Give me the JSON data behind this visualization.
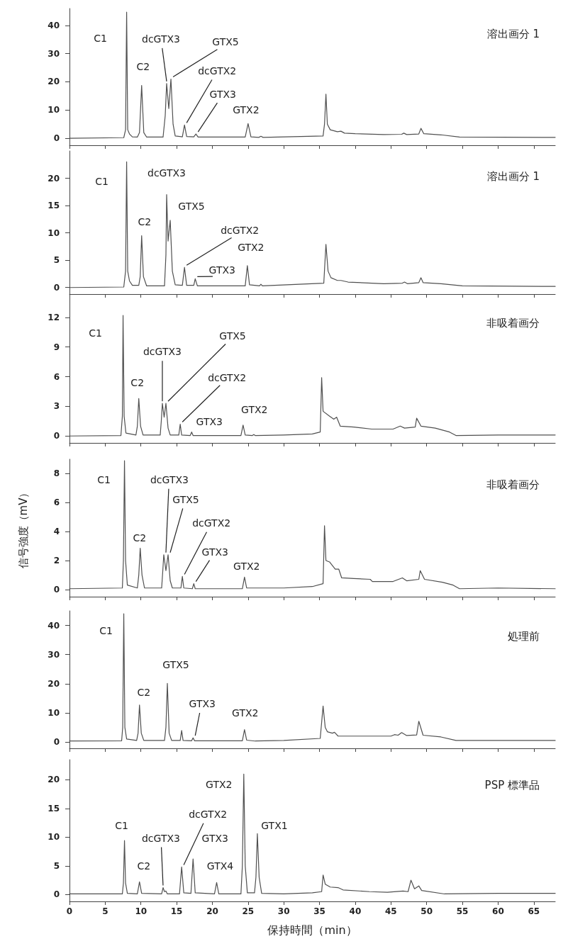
{
  "chart_data": [
    {
      "type": "line",
      "xlim": [
        0,
        68
      ],
      "xticks": [
        0,
        5,
        10,
        15,
        20,
        25,
        30,
        35,
        40,
        45,
        50,
        55,
        60,
        65
      ],
      "ylim": [
        -2.5,
        46
      ],
      "yticks": [
        0,
        10,
        20,
        30,
        40
      ],
      "tick_labels": "y",
      "series": [
        {
          "color": "#505050",
          "x": [
            0,
            7.6,
            7.85,
            8.0,
            8.15,
            8.4,
            8.8,
            9.5,
            9.8,
            10.1,
            10.4,
            10.8,
            13.1,
            13.4,
            13.6,
            13.9,
            14.2,
            14.5,
            14.8,
            15.8,
            16.1,
            16.4,
            17.4,
            17.7,
            18,
            24.6,
            25,
            25.4,
            26.5,
            26.8,
            27.1,
            35.5,
            35.7,
            35.9,
            36.1,
            36.5,
            37.5,
            38,
            38.5,
            40,
            44,
            46.5,
            46.8,
            47.2,
            48.9,
            49.2,
            49.6,
            52,
            54.6,
            68
          ],
          "values": [
            0,
            0.2,
            3,
            44.7,
            3,
            1.5,
            0.5,
            0.4,
            2,
            18.7,
            2,
            0.4,
            0.4,
            8,
            19.4,
            10.5,
            21,
            5,
            0.8,
            0.5,
            4.7,
            0.6,
            0.5,
            1.5,
            0.4,
            0.4,
            5.2,
            0.5,
            0.3,
            0.7,
            0.3,
            0.8,
            5,
            15.6,
            5,
            3,
            2.3,
            2.5,
            1.8,
            1.6,
            1.3,
            1.4,
            1.8,
            1.3,
            1.5,
            3.5,
            1.6,
            1.2,
            0.4,
            0.3
          ]
        }
      ],
      "annotations": [
        {
          "text": "C1",
          "x": 8.0,
          "y": 44.7
        },
        {
          "text": "C2",
          "x": 10.1,
          "y": 18.7
        },
        {
          "text": "dcGTX3",
          "x": 13.6,
          "y": 19.4
        },
        {
          "text": "GTX5",
          "x": 14.2,
          "y": 21
        },
        {
          "text": "dcGTX2",
          "x": 16.1,
          "y": 4.7
        },
        {
          "text": "GTX3",
          "x": 17.7,
          "y": 1.5
        },
        {
          "text": "GTX2",
          "x": 25,
          "y": 5.2
        },
        "溶出画分 1"
      ]
    },
    {
      "type": "line",
      "xlim": [
        0,
        68
      ],
      "xticks": [
        0,
        5,
        10,
        15,
        20,
        25,
        30,
        35,
        40,
        45,
        50,
        55,
        60,
        65
      ],
      "ylim": [
        -1.2,
        25
      ],
      "yticks": [
        0,
        5,
        10,
        15,
        20
      ],
      "tick_labels": "y",
      "series": [
        {
          "color": "#505050",
          "x": [
            0,
            7.6,
            7.85,
            8.0,
            8.15,
            8.4,
            8.8,
            9.7,
            9.9,
            10.1,
            10.35,
            10.8,
            13.3,
            13.5,
            13.6,
            13.8,
            14.1,
            14.4,
            14.8,
            15.8,
            16.1,
            16.4,
            17.4,
            17.6,
            17.9,
            24.6,
            24.9,
            25.2,
            26.6,
            26.8,
            27.0,
            35.6,
            35.9,
            36.2,
            36.6,
            37.5,
            38,
            39,
            44,
            46.6,
            46.9,
            47.3,
            48.9,
            49.2,
            49.5,
            52,
            55,
            68
          ],
          "values": [
            0,
            0.1,
            3,
            23,
            3,
            1.2,
            0.4,
            0.4,
            2,
            9.5,
            2,
            0.3,
            0.3,
            6,
            17,
            8.5,
            12.3,
            3,
            0.5,
            0.4,
            3.7,
            0.4,
            0.4,
            1.6,
            0.3,
            0.3,
            4.0,
            0.5,
            0.3,
            0.6,
            0.3,
            0.8,
            7.9,
            3,
            1.8,
            1.3,
            1.3,
            1.0,
            0.7,
            0.8,
            1.0,
            0.7,
            0.9,
            1.8,
            0.9,
            0.7,
            0.3,
            0.2
          ]
        }
      ],
      "annotations": [
        {
          "text": "C1",
          "x": 8.0,
          "y": 23
        },
        {
          "text": "dcGTX3",
          "x": 13.6,
          "y": 17
        },
        {
          "text": "GTX5",
          "x": 14.1,
          "y": 12.3
        },
        {
          "text": "C2",
          "x": 10.1,
          "y": 9.5
        },
        {
          "text": "dcGTX2",
          "x": 16.1,
          "y": 3.7
        },
        {
          "text": "GTX2",
          "x": 24.9,
          "y": 4.0
        },
        {
          "text": "GTX3",
          "x": 17.6,
          "y": 1.6
        },
        "溶出画分 1"
      ]
    },
    {
      "type": "line",
      "xlim": [
        0,
        68
      ],
      "xticks": [
        0,
        5,
        10,
        15,
        20,
        25,
        30,
        35,
        40,
        45,
        50,
        55,
        60,
        65
      ],
      "ylim": [
        -0.7,
        14
      ],
      "yticks": [
        0,
        3,
        6,
        9,
        12
      ],
      "tick_labels": "y",
      "series": [
        {
          "color": "#505050",
          "x": [
            0,
            7.2,
            7.4,
            7.5,
            7.65,
            7.9,
            9.3,
            9.5,
            9.7,
            9.95,
            10.3,
            12.7,
            12.85,
            13.0,
            13.25,
            13.5,
            13.8,
            14.1,
            15.3,
            15.5,
            15.7,
            16.9,
            17.1,
            17.3,
            24.0,
            24.3,
            24.6,
            25.6,
            25.8,
            26.0,
            30,
            34,
            35.1,
            35.3,
            35.5,
            36.4,
            37.0,
            37.4,
            37.9,
            39.8,
            42.3,
            45.3,
            46.3,
            46.9,
            48.4,
            48.6,
            49.2,
            51.2,
            53.2,
            54.1,
            60,
            68
          ],
          "values": [
            0,
            0.05,
            2,
            12.2,
            2,
            0.3,
            0.1,
            1,
            3.8,
            1,
            0.1,
            0.1,
            1.5,
            3.3,
            1.9,
            3.3,
            0.8,
            0.1,
            0.1,
            1.2,
            0.1,
            0.05,
            0.4,
            0.05,
            0.05,
            1.1,
            0.1,
            0.05,
            0.15,
            0.05,
            0.1,
            0.2,
            0.4,
            5.9,
            2.5,
            2.0,
            1.7,
            1.9,
            1.0,
            0.9,
            0.7,
            0.7,
            1.0,
            0.8,
            0.9,
            1.8,
            1.0,
            0.8,
            0.4,
            0.05,
            0.1,
            0.1
          ]
        }
      ],
      "annotations": [
        {
          "text": "C1",
          "x": 7.5,
          "y": 12.2
        },
        {
          "text": "GTX5",
          "x": 13.5,
          "y": 3.3
        },
        {
          "text": "dcGTX3",
          "x": 13.0,
          "y": 3.3
        },
        {
          "text": "C2",
          "x": 9.7,
          "y": 3.8
        },
        {
          "text": "dcGTX2",
          "x": 15.5,
          "y": 1.2
        },
        {
          "text": "GTX3",
          "x": 17.1,
          "y": 0.4
        },
        {
          "text": "GTX2",
          "x": 24.3,
          "y": 1.1
        },
        "非吸着画分"
      ]
    },
    {
      "type": "line",
      "xlim": [
        0,
        68
      ],
      "xticks": [
        0,
        5,
        10,
        15,
        20,
        25,
        30,
        35,
        40,
        45,
        50,
        55,
        60,
        65
      ],
      "ylim": [
        -0.5,
        9
      ],
      "yticks": [
        0,
        2,
        4,
        6,
        8
      ],
      "tick_labels": "y",
      "ylabel": "信号強度（mV）",
      "series": [
        {
          "color": "#505050",
          "x": [
            0,
            7.4,
            7.55,
            7.7,
            7.85,
            8.1,
            9.5,
            9.7,
            9.9,
            10.15,
            10.5,
            12.9,
            13.05,
            13.2,
            13.5,
            13.8,
            14.1,
            14.4,
            15.6,
            15.8,
            16.0,
            17.2,
            17.4,
            17.6,
            24.2,
            24.5,
            24.8,
            30,
            34,
            35.5,
            35.7,
            35.9,
            36.4,
            37.2,
            37.7,
            38.1,
            39.8,
            42.1,
            42.4,
            45.3,
            46.6,
            47.2,
            48.9,
            49.1,
            49.7,
            52.2,
            53.7,
            54.6,
            60,
            68
          ],
          "values": [
            0.05,
            0.1,
            2,
            8.9,
            2,
            0.3,
            0.1,
            1,
            2.85,
            1,
            0.1,
            0.1,
            1.2,
            2.4,
            1.3,
            2.4,
            0.6,
            0.1,
            0.1,
            0.9,
            0.1,
            0.05,
            0.4,
            0.05,
            0.05,
            0.85,
            0.1,
            0.1,
            0.2,
            0.4,
            4.4,
            2.0,
            1.9,
            1.4,
            1.4,
            0.8,
            0.75,
            0.7,
            0.55,
            0.55,
            0.8,
            0.6,
            0.7,
            1.3,
            0.7,
            0.5,
            0.3,
            0.05,
            0.1,
            0.05
          ]
        }
      ],
      "annotations": [
        {
          "text": "C1",
          "x": 7.7,
          "y": 8.9
        },
        {
          "text": "dcGTX3",
          "x": 13.2,
          "y": 2.4
        },
        {
          "text": "GTX5",
          "x": 13.8,
          "y": 2.4
        },
        {
          "text": "dcGTX2",
          "x": 15.8,
          "y": 0.9
        },
        {
          "text": "C2",
          "x": 9.9,
          "y": 2.85
        },
        {
          "text": "GTX3",
          "x": 17.4,
          "y": 0.4
        },
        {
          "text": "GTX2",
          "x": 24.5,
          "y": 0.85
        },
        "非吸着画分"
      ]
    },
    {
      "type": "line",
      "xlim": [
        0,
        68
      ],
      "xticks": [
        0,
        5,
        10,
        15,
        20,
        25,
        30,
        35,
        40,
        45,
        50,
        55,
        60,
        65
      ],
      "ylim": [
        -2.2,
        45
      ],
      "yticks": [
        0,
        10,
        20,
        30,
        40
      ],
      "tick_labels": "y",
      "series": [
        {
          "color": "#505050",
          "x": [
            0,
            7.3,
            7.45,
            7.6,
            7.75,
            8.0,
            9.4,
            9.6,
            9.8,
            10.05,
            10.4,
            13.3,
            13.5,
            13.7,
            13.95,
            14.3,
            15.5,
            15.7,
            15.9,
            17.1,
            17.3,
            17.5,
            24.2,
            24.5,
            24.8,
            26,
            30,
            35.1,
            35.5,
            35.8,
            36.1,
            36.8,
            37.1,
            37.6,
            40,
            45,
            45.5,
            46.0,
            46.5,
            47.2,
            48.6,
            48.9,
            49.5,
            52,
            54.1,
            68
          ],
          "values": [
            0.3,
            0.4,
            5,
            44,
            5,
            1,
            0.5,
            3,
            12.7,
            3,
            0.5,
            0.5,
            5,
            20.1,
            3,
            0.5,
            0.5,
            3.9,
            0.5,
            0.4,
            1.4,
            0.4,
            0.4,
            4.2,
            0.6,
            0.3,
            0.5,
            1.2,
            12.3,
            5,
            3.5,
            3.0,
            3.3,
            2.0,
            2.0,
            2.0,
            2.5,
            2.3,
            3.2,
            2.2,
            2.4,
            7.1,
            2.3,
            1.7,
            0.5,
            0.5
          ]
        }
      ],
      "annotations": [
        {
          "text": "C1",
          "x": 7.6,
          "y": 44
        },
        {
          "text": "GTX5",
          "x": 13.7,
          "y": 20.1
        },
        {
          "text": "C2",
          "x": 9.8,
          "y": 12.7
        },
        {
          "text": "GTX3",
          "x": 17.3,
          "y": 1.4
        },
        {
          "text": "GTX2",
          "x": 24.5,
          "y": 4.2
        },
        "処理前"
      ]
    },
    {
      "type": "line",
      "xlim": [
        0,
        68
      ],
      "xticks": [
        0,
        5,
        10,
        15,
        20,
        25,
        30,
        35,
        40,
        45,
        50,
        55,
        60,
        65
      ],
      "ylim": [
        -1.2,
        23.5
      ],
      "yticks": [
        0,
        5,
        10,
        15,
        20
      ],
      "xlabel": "保持時間（min）",
      "series": [
        {
          "color": "#505050",
          "x": [
            0,
            7.4,
            7.55,
            7.7,
            7.85,
            8.1,
            9.5,
            9.8,
            10.1,
            12.9,
            13.1,
            13.3,
            13.5,
            13.7,
            15.4,
            15.7,
            16.0,
            17.0,
            17.3,
            17.6,
            20.3,
            20.6,
            20.9,
            24.0,
            24.2,
            24.4,
            24.6,
            24.9,
            25.9,
            26.1,
            26.3,
            26.55,
            26.9,
            30,
            34,
            35.3,
            35.5,
            35.8,
            36.5,
            37.6,
            38.3,
            42,
            44.5,
            46.7,
            47.4,
            47.8,
            48.3,
            48.9,
            49.3,
            52.5,
            60,
            68
          ],
          "values": [
            0.1,
            0.1,
            2,
            9.4,
            2,
            0.2,
            0.1,
            2.2,
            0.2,
            0.1,
            1.2,
            0.5,
            0.6,
            0.1,
            0.1,
            4.8,
            0.3,
            0.2,
            6.2,
            0.3,
            0.1,
            2.1,
            0.1,
            0.1,
            5,
            21,
            5,
            0.3,
            0.3,
            3,
            10.6,
            3,
            0.2,
            0.1,
            0.3,
            0.5,
            3.4,
            1.8,
            1.3,
            1.2,
            0.8,
            0.5,
            0.4,
            0.6,
            0.5,
            2.5,
            1.0,
            1.5,
            0.7,
            0.1,
            0.2,
            0.2
          ]
        }
      ],
      "annotations": [
        {
          "text": "GTX2",
          "x": 24.4,
          "y": 21
        },
        {
          "text": "dcGTX2",
          "x": 15.7,
          "y": 4.8
        },
        {
          "text": "GTX1",
          "x": 26.3,
          "y": 10.6
        },
        {
          "text": "C1",
          "x": 7.7,
          "y": 9.4
        },
        {
          "text": "dcGTX3",
          "x": 13.1,
          "y": 1.2
        },
        {
          "text": "GTX3",
          "x": 17.3,
          "y": 6.2
        },
        {
          "text": "GTX4",
          "x": 20.6,
          "y": 2.1
        },
        {
          "text": "C2",
          "x": 9.8,
          "y": 2.2
        },
        "PSP 標準品"
      ]
    }
  ]
}
